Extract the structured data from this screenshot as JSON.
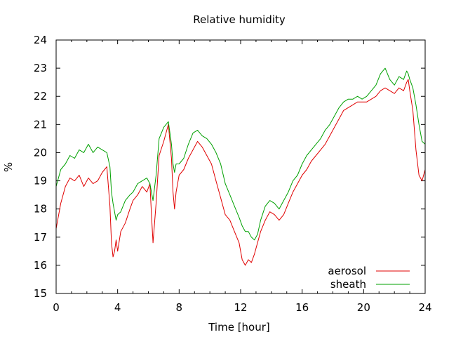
{
  "chart_data": {
    "type": "line",
    "title": "Relative humidity",
    "xlabel": "Time [hour]",
    "ylabel": "%",
    "xlim": [
      0,
      24
    ],
    "ylim": [
      15,
      24
    ],
    "xticks": [
      0,
      4,
      8,
      12,
      16,
      20,
      24
    ],
    "yticks": [
      15,
      16,
      17,
      18,
      19,
      20,
      21,
      22,
      23,
      24
    ],
    "grid": false,
    "legend_position": "bottom-right",
    "series": [
      {
        "name": "aerosol",
        "color": "#e00000",
        "x": [
          0,
          0.3,
          0.6,
          0.9,
          1.2,
          1.5,
          1.8,
          2.1,
          2.4,
          2.7,
          3.0,
          3.3,
          3.5,
          3.6,
          3.7,
          3.8,
          3.9,
          4.0,
          4.2,
          4.5,
          4.8,
          5.0,
          5.3,
          5.6,
          5.9,
          6.1,
          6.2,
          6.3,
          6.5,
          6.7,
          7.0,
          7.3,
          7.5,
          7.6,
          7.7,
          7.8,
          8.0,
          8.3,
          8.6,
          8.9,
          9.2,
          9.5,
          9.8,
          10.1,
          10.4,
          10.7,
          11.0,
          11.3,
          11.6,
          11.9,
          12.1,
          12.3,
          12.5,
          12.7,
          12.9,
          13.1,
          13.3,
          13.6,
          13.9,
          14.2,
          14.5,
          14.8,
          15.1,
          15.4,
          15.7,
          16.0,
          16.3,
          16.6,
          16.9,
          17.2,
          17.5,
          17.8,
          18.1,
          18.4,
          18.7,
          19.0,
          19.3,
          19.6,
          19.9,
          20.2,
          20.5,
          20.8,
          21.1,
          21.4,
          21.7,
          22.0,
          22.3,
          22.6,
          22.8,
          22.9,
          23.0,
          23.2,
          23.4,
          23.6,
          23.8,
          24.0
        ],
        "values": [
          17.3,
          18.2,
          18.8,
          19.1,
          19.0,
          19.2,
          18.8,
          19.1,
          18.9,
          19.0,
          19.3,
          19.5,
          18.1,
          16.8,
          16.3,
          16.5,
          16.9,
          16.5,
          17.2,
          17.5,
          18.0,
          18.3,
          18.5,
          18.8,
          18.6,
          18.9,
          17.8,
          16.8,
          18.2,
          19.9,
          20.4,
          21.0,
          19.8,
          18.6,
          18.0,
          18.6,
          19.2,
          19.4,
          19.8,
          20.1,
          20.4,
          20.2,
          19.9,
          19.6,
          19.0,
          18.4,
          17.8,
          17.6,
          17.2,
          16.8,
          16.2,
          16.0,
          16.2,
          16.1,
          16.4,
          16.8,
          17.2,
          17.6,
          17.9,
          17.8,
          17.6,
          17.8,
          18.2,
          18.6,
          18.9,
          19.2,
          19.4,
          19.7,
          19.9,
          20.1,
          20.3,
          20.6,
          20.9,
          21.2,
          21.5,
          21.6,
          21.7,
          21.8,
          21.8,
          21.8,
          21.9,
          22.0,
          22.2,
          22.3,
          22.2,
          22.1,
          22.3,
          22.2,
          22.5,
          22.6,
          22.2,
          21.5,
          20.1,
          19.2,
          19.0,
          19.4
        ]
      },
      {
        "name": "sheath",
        "color": "#00a000",
        "x": [
          0,
          0.3,
          0.6,
          0.9,
          1.2,
          1.5,
          1.8,
          2.1,
          2.4,
          2.7,
          3.0,
          3.3,
          3.5,
          3.6,
          3.7,
          3.8,
          3.9,
          4.0,
          4.2,
          4.5,
          4.8,
          5.0,
          5.3,
          5.6,
          5.9,
          6.1,
          6.2,
          6.3,
          6.5,
          6.7,
          7.0,
          7.3,
          7.5,
          7.6,
          7.7,
          7.8,
          8.0,
          8.3,
          8.6,
          8.9,
          9.2,
          9.5,
          9.8,
          10.1,
          10.4,
          10.7,
          11.0,
          11.3,
          11.6,
          11.9,
          12.1,
          12.3,
          12.5,
          12.7,
          12.9,
          13.1,
          13.3,
          13.6,
          13.9,
          14.2,
          14.5,
          14.8,
          15.1,
          15.4,
          15.7,
          16.0,
          16.3,
          16.6,
          16.9,
          17.2,
          17.5,
          17.8,
          18.1,
          18.4,
          18.7,
          19.0,
          19.3,
          19.6,
          19.9,
          20.2,
          20.5,
          20.8,
          21.1,
          21.4,
          21.7,
          22.0,
          22.3,
          22.6,
          22.8,
          22.9,
          23.0,
          23.2,
          23.4,
          23.6,
          23.8,
          24.0
        ],
        "values": [
          18.8,
          19.4,
          19.6,
          19.9,
          19.8,
          20.1,
          20.0,
          20.3,
          20.0,
          20.2,
          20.1,
          20.0,
          19.5,
          18.6,
          18.2,
          17.9,
          17.6,
          17.8,
          17.9,
          18.3,
          18.5,
          18.6,
          18.9,
          19.0,
          19.1,
          18.9,
          18.6,
          18.3,
          19.2,
          20.5,
          20.9,
          21.1,
          20.3,
          19.6,
          19.3,
          19.6,
          19.6,
          19.8,
          20.3,
          20.7,
          20.8,
          20.6,
          20.5,
          20.3,
          20.0,
          19.6,
          18.9,
          18.5,
          18.1,
          17.7,
          17.4,
          17.2,
          17.2,
          17.0,
          16.9,
          17.1,
          17.6,
          18.1,
          18.3,
          18.2,
          18.0,
          18.3,
          18.6,
          19.0,
          19.2,
          19.6,
          19.9,
          20.1,
          20.3,
          20.5,
          20.8,
          21.0,
          21.3,
          21.6,
          21.8,
          21.9,
          21.9,
          22.0,
          21.9,
          22.0,
          22.2,
          22.4,
          22.8,
          23.0,
          22.6,
          22.4,
          22.7,
          22.6,
          22.9,
          22.8,
          22.6,
          22.3,
          21.7,
          21.0,
          20.4,
          20.3
        ]
      }
    ]
  }
}
